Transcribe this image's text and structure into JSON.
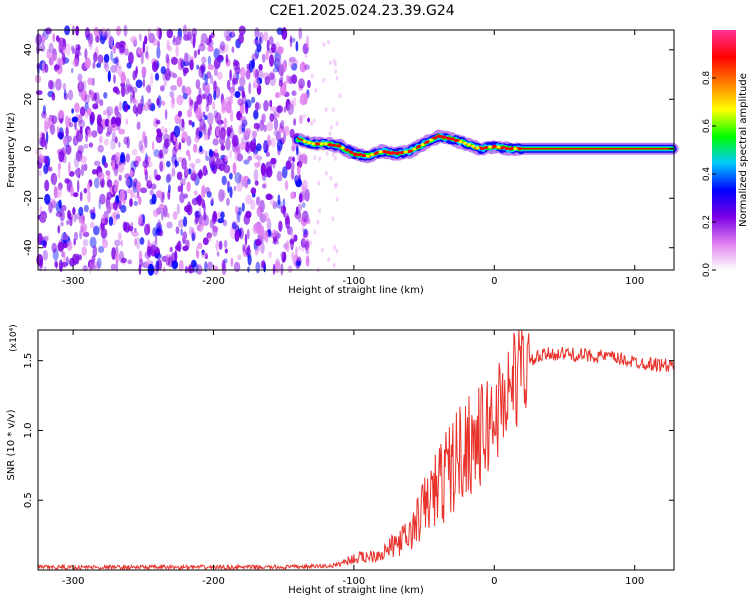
{
  "title": "C2E1.2025.024.23.39.G24",
  "chart_data": [
    {
      "type": "heatmap",
      "xlabel": "Height of straight line (km)",
      "ylabel": "Frequency (Hz)",
      "xlim": [
        -325,
        128
      ],
      "ylim": [
        -49,
        48
      ],
      "xticks": [
        -300,
        -200,
        -100,
        0,
        100
      ],
      "yticks": [
        -40,
        -20,
        0,
        20,
        40
      ],
      "colorbar": {
        "label": "Normalized spectral amplitude",
        "range": [
          0.0,
          1.0
        ],
        "ticks": [
          0.0,
          0.2,
          0.4,
          0.6,
          0.8
        ],
        "tick_labels": [
          "0.0",
          "0.2",
          "0.4",
          "0.6",
          "0.8"
        ],
        "colormap": [
          "#ffffff",
          "#e080f0",
          "#7a00e6",
          "#0000ff",
          "#00c8ff",
          "#00ff00",
          "#ffff00",
          "#ff8000",
          "#ff0000",
          "#ff3399"
        ]
      },
      "noise_region_x": [
        -325,
        -140
      ],
      "signal_track": {
        "x": [
          -140,
          -130,
          -120,
          -110,
          -100,
          -90,
          -80,
          -70,
          -60,
          -50,
          -40,
          -30,
          -20,
          -10,
          0,
          10,
          20,
          50,
          100,
          128
        ],
        "y": [
          4,
          2,
          2,
          1,
          -2,
          -3,
          -1,
          -2,
          -1,
          2,
          5,
          4,
          2,
          0,
          1,
          0,
          0,
          0,
          0,
          0
        ]
      }
    },
    {
      "type": "line",
      "xlabel": "Height of straight line (km)",
      "ylabel": "SNR (10 * v/v)",
      "y_multiplier": "(x10⁴)",
      "xlim": [
        -325,
        128
      ],
      "ylim": [
        0.0,
        1.72
      ],
      "xticks": [
        -300,
        -200,
        -100,
        0,
        100
      ],
      "yticks": [
        0.5,
        1.0,
        1.5
      ],
      "ytick_labels": [
        "0.5",
        "1.0",
        "1.5"
      ],
      "color": "#e8332c",
      "series": [
        {
          "x": [
            -325,
            -250,
            -150,
            -115,
            -100,
            -80,
            -60,
            -50,
            -40,
            -30,
            -20,
            -10,
            0,
            10,
            20,
            30,
            40,
            50,
            60,
            80,
            100,
            128
          ],
          "y": [
            0.02,
            0.02,
            0.02,
            0.03,
            0.08,
            0.12,
            0.25,
            0.45,
            0.6,
            0.75,
            0.9,
            0.95,
            1.1,
            1.3,
            1.45,
            1.52,
            1.55,
            1.55,
            1.54,
            1.53,
            1.49,
            1.46
          ]
        }
      ]
    }
  ]
}
